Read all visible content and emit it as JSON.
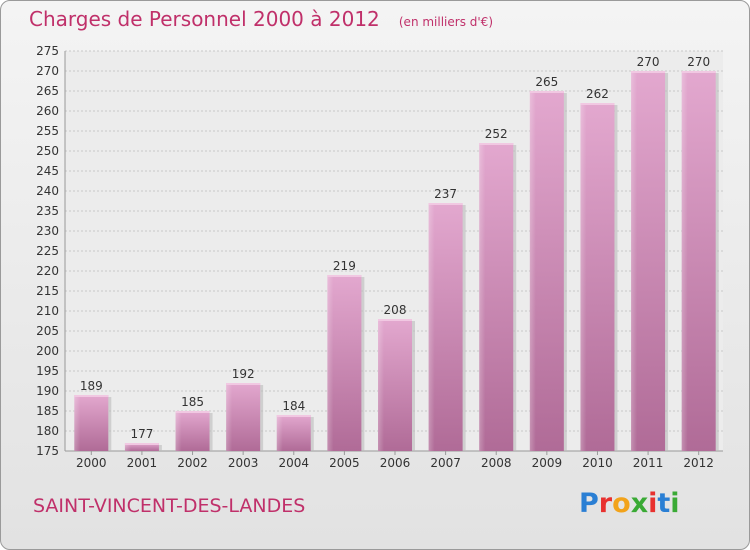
{
  "header": {
    "title": "Charges de Personnel 2000 à 2012",
    "unit": "(en milliers d'€)"
  },
  "footer": {
    "commune": "SAINT-VINCENT-DES-LANDES"
  },
  "brand": {
    "letters": [
      {
        "char": "P",
        "color": "#2a7fd4"
      },
      {
        "char": "r",
        "color": "#e8312f"
      },
      {
        "char": "o",
        "color": "#f2a31b"
      },
      {
        "char": "x",
        "color": "#3aaa35"
      },
      {
        "char": "i",
        "color": "#e8312f"
      },
      {
        "char": "t",
        "color": "#2a7fd4"
      },
      {
        "char": "i",
        "color": "#3aaa35"
      }
    ]
  },
  "chart_data": {
    "type": "bar",
    "categories": [
      "2000",
      "2001",
      "2002",
      "2003",
      "2004",
      "2005",
      "2006",
      "2007",
      "2008",
      "2009",
      "2010",
      "2011",
      "2012"
    ],
    "values": [
      189,
      177,
      185,
      192,
      184,
      219,
      208,
      237,
      252,
      265,
      262,
      270,
      270
    ],
    "ylim": [
      175,
      275
    ],
    "yticks": [
      175,
      180,
      185,
      190,
      195,
      200,
      205,
      210,
      215,
      220,
      225,
      230,
      235,
      240,
      245,
      250,
      255,
      260,
      265,
      270,
      275
    ],
    "grid": true,
    "bar_color": "#d98ab8",
    "label_color": "#333333"
  }
}
